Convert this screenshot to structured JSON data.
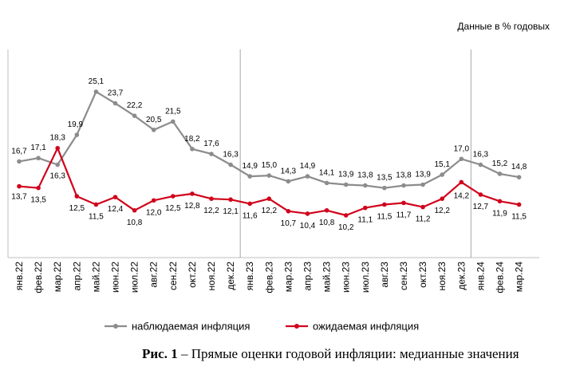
{
  "units_note": "Данные в % годовых",
  "caption": {
    "prefix": "Рис. 1",
    "text": " – Прямые оценки годовой инфляции: медианные значения"
  },
  "chart_data": {
    "type": "line",
    "categories": [
      "янв.22",
      "фев.22",
      "мар.22",
      "апр.22",
      "май.22",
      "июн.22",
      "июл.22",
      "авг.22",
      "сен.22",
      "окт.22",
      "ноя.22",
      "дек.22",
      "янв.23",
      "фев.23",
      "мар.23",
      "апр.23",
      "май.23",
      "июн.23",
      "июл.23",
      "авг.23",
      "сен.23",
      "окт.23",
      "ноя.23",
      "дек.23",
      "янв.24",
      "фев.24",
      "мар.24"
    ],
    "series": [
      {
        "name": "наблюдаемая инфляция",
        "color": "#8c8c8c",
        "values": [
          16.7,
          17.1,
          16.3,
          19.9,
          25.1,
          23.7,
          22.2,
          20.5,
          21.5,
          18.2,
          17.6,
          16.3,
          14.9,
          15.0,
          14.3,
          14.9,
          14.1,
          13.9,
          13.8,
          13.5,
          13.8,
          13.9,
          15.1,
          17.0,
          16.3,
          15.2,
          14.8
        ],
        "labels": [
          "16,7",
          "17,1",
          "16,3",
          "19,9",
          "25,1",
          "23,7",
          "22,2",
          "20,5",
          "21,5",
          "18,2",
          "17,6",
          "16,3",
          "14,9",
          "15,0",
          "14,3",
          "14,9",
          "14,1",
          "13,9",
          "13,8",
          "13,5",
          "13,8",
          "13,9",
          "15,1",
          "17,0",
          "16,3",
          "15,2",
          "14,8"
        ]
      },
      {
        "name": "ожидаемая инфляция",
        "color": "#d0021b",
        "values": [
          13.7,
          13.5,
          18.3,
          12.5,
          11.5,
          12.4,
          10.8,
          12.0,
          12.5,
          12.8,
          12.2,
          12.1,
          11.6,
          12.2,
          10.7,
          10.4,
          10.8,
          10.2,
          11.1,
          11.5,
          11.7,
          11.2,
          12.2,
          14.2,
          12.7,
          11.9,
          11.5
        ],
        "labels": [
          "13,7",
          "13,5",
          "18,3",
          "12,5",
          "11,5",
          "12,4",
          "10,8",
          "12,0",
          "12,5",
          "12,8",
          "12,2",
          "12,1",
          "11,6",
          "12,2",
          "10,7",
          "10,4",
          "10,8",
          "10,2",
          "11,1",
          "11,5",
          "11,7",
          "11,2",
          "12,2",
          "14,2",
          "12,7",
          "11,9",
          "11,5"
        ]
      }
    ],
    "year_dividers_after": [
      "дек.22",
      "дек.23"
    ],
    "grid": false,
    "legend_position": "bottom"
  }
}
